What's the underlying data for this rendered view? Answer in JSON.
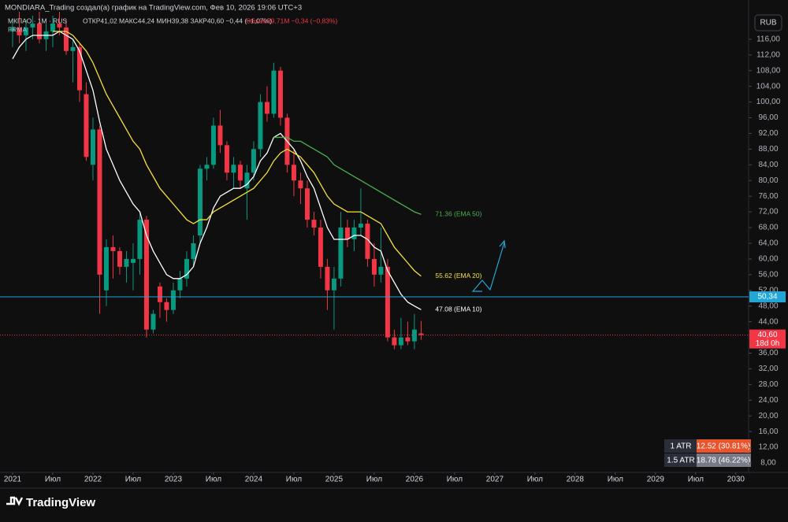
{
  "header": {
    "credit": "MONDIARA_Trading создал(а) график на TradingView.com, Фев 10, 2026 19:06 UTC+3",
    "symbol": "МКПАО · 1M · RUS",
    "ohlc": "ОТКР41,02 МАКС44,24 МИН39,38 ЗАКР40,60 −0,44 (−1,07%)",
    "volume": "Объём29,71M −0,34 (−0,83%)",
    "indicator": "FRMA",
    "currency": "RUB"
  },
  "atr_table": {
    "rows": [
      [
        "1 ATR",
        "12.52 (30.81%)"
      ],
      [
        "1.5 ATR",
        "18.78 (46.22%)"
      ]
    ]
  },
  "footer": {
    "logo": "TradingView"
  },
  "chart_data": {
    "type": "candlestick",
    "up_color": "#089981",
    "down_color": "#f23645",
    "xlim": [
      -1.88,
      109.9
    ],
    "ylim": [
      5.6,
      126.0
    ],
    "grid": false,
    "xticks": [
      {
        "value": 0,
        "label": "2021"
      },
      {
        "value": 6,
        "label": "Июл"
      },
      {
        "value": 12,
        "label": "2022"
      },
      {
        "value": 18,
        "label": "Июл"
      },
      {
        "value": 24,
        "label": "2023"
      },
      {
        "value": 30,
        "label": "Июл"
      },
      {
        "value": 36,
        "label": "2024"
      },
      {
        "value": 42,
        "label": "Июл"
      },
      {
        "value": 48,
        "label": "2025"
      },
      {
        "value": 54,
        "label": "Июл"
      },
      {
        "value": 60,
        "label": "2026"
      },
      {
        "value": 66,
        "label": "Июл"
      },
      {
        "value": 72,
        "label": "2027"
      },
      {
        "value": 78,
        "label": "Июл"
      },
      {
        "value": 84,
        "label": "2028"
      },
      {
        "value": 90,
        "label": "Июл"
      },
      {
        "value": 96,
        "label": "2029"
      },
      {
        "value": 102,
        "label": "Июл"
      },
      {
        "value": 108,
        "label": "2030"
      }
    ],
    "yticks": [
      {
        "value": 8,
        "label": "8,00"
      },
      {
        "value": 12,
        "label": "12,00"
      },
      {
        "value": 16,
        "label": "16,00"
      },
      {
        "value": 20,
        "label": "20,00"
      },
      {
        "value": 24,
        "label": "24,00"
      },
      {
        "value": 28,
        "label": "28,00"
      },
      {
        "value": 32,
        "label": "32,00"
      },
      {
        "value": 36,
        "label": "36,00"
      },
      {
        "value": 44,
        "label": "44,00"
      },
      {
        "value": 48,
        "label": "48,00"
      },
      {
        "value": 52,
        "label": "52,00"
      },
      {
        "value": 56,
        "label": "56,00"
      },
      {
        "value": 60,
        "label": "60,00"
      },
      {
        "value": 64,
        "label": "64,00"
      },
      {
        "value": 68,
        "label": "68,00"
      },
      {
        "value": 72,
        "label": "72,00"
      },
      {
        "value": 76,
        "label": "76,00"
      },
      {
        "value": 80,
        "label": "80,00"
      },
      {
        "value": 84,
        "label": "84,00"
      },
      {
        "value": 88,
        "label": "88,00"
      },
      {
        "value": 92,
        "label": "92,00"
      },
      {
        "value": 96,
        "label": "96,00"
      },
      {
        "value": 100,
        "label": "100,00"
      },
      {
        "value": 104,
        "label": "104,00"
      },
      {
        "value": 108,
        "label": "108,00"
      },
      {
        "value": 112,
        "label": "112,00"
      },
      {
        "value": 116,
        "label": "116,00"
      }
    ],
    "x": [
      0,
      1,
      2,
      3,
      4,
      5,
      6,
      7,
      8,
      9,
      10,
      11,
      12,
      13,
      14,
      15,
      16,
      17,
      18,
      19,
      20,
      21,
      22,
      23,
      24,
      25,
      26,
      27,
      28,
      29,
      30,
      31,
      32,
      33,
      34,
      35,
      36,
      37,
      38,
      39,
      40,
      41,
      42,
      43,
      44,
      45,
      46,
      47,
      48,
      49,
      50,
      51,
      52,
      53,
      54,
      55,
      56,
      57,
      58,
      59,
      60,
      61
    ],
    "ohlc": [
      [
        118,
        121,
        114,
        119
      ],
      [
        119,
        123,
        115,
        117
      ],
      [
        117,
        121,
        113,
        119
      ],
      [
        119,
        122,
        116,
        120
      ],
      [
        120,
        123,
        115,
        116
      ],
      [
        116,
        120,
        113,
        118
      ],
      [
        118,
        122,
        114,
        120
      ],
      [
        120,
        123,
        117,
        119
      ],
      [
        119,
        121,
        112,
        113
      ],
      [
        113,
        116,
        105,
        114
      ],
      [
        114,
        115,
        100,
        103
      ],
      [
        102,
        105,
        85,
        86
      ],
      [
        84,
        96,
        80,
        93
      ],
      [
        93,
        94,
        46,
        56
      ],
      [
        52,
        65,
        48,
        63
      ],
      [
        63,
        66,
        55,
        62
      ],
      [
        62,
        63,
        56,
        58
      ],
      [
        58,
        62,
        54,
        60
      ],
      [
        59,
        64,
        52,
        60
      ],
      [
        60,
        72,
        56,
        70
      ],
      [
        70,
        71,
        40,
        42
      ],
      [
        42,
        47,
        41,
        46
      ],
      [
        53,
        54,
        45,
        49
      ],
      [
        49,
        50,
        44,
        47
      ],
      [
        47,
        54,
        46,
        52
      ],
      [
        52,
        57,
        50,
        55
      ],
      [
        55,
        62,
        53,
        60
      ],
      [
        60,
        66,
        58,
        64
      ],
      [
        66,
        84,
        64,
        83
      ],
      [
        83,
        86,
        80,
        84
      ],
      [
        84,
        96,
        83,
        94
      ],
      [
        94,
        98,
        87,
        89
      ],
      [
        89,
        90,
        80,
        82
      ],
      [
        82,
        86,
        78,
        84
      ],
      [
        84,
        85,
        78,
        80
      ],
      [
        78,
        84,
        70,
        82
      ],
      [
        82,
        90,
        80,
        88
      ],
      [
        88,
        102,
        86,
        100
      ],
      [
        100,
        104,
        95,
        97
      ],
      [
        97,
        110,
        96,
        108
      ],
      [
        108,
        109,
        94,
        96
      ],
      [
        96,
        97,
        82,
        84
      ],
      [
        84,
        88,
        76,
        80
      ],
      [
        80,
        82,
        74,
        78
      ],
      [
        78,
        80,
        68,
        70
      ],
      [
        70,
        72,
        66,
        68
      ],
      [
        68,
        70,
        55,
        58
      ],
      [
        58,
        60,
        47,
        52
      ],
      [
        52,
        58,
        42,
        55
      ],
      [
        55,
        72,
        53,
        68
      ],
      [
        68,
        70,
        63,
        65
      ],
      [
        65,
        70,
        62,
        68
      ],
      [
        68,
        78,
        66,
        69
      ],
      [
        69,
        70,
        58,
        60
      ],
      [
        60,
        64,
        53,
        56
      ],
      [
        56,
        68,
        54,
        58
      ],
      [
        58,
        60,
        39,
        40
      ],
      [
        40,
        42,
        37,
        38
      ],
      [
        38,
        45,
        37,
        40
      ],
      [
        40,
        44,
        38,
        39
      ],
      [
        39,
        46,
        37,
        42
      ],
      [
        41.02,
        44.24,
        39.38,
        40.6
      ]
    ],
    "last_price_label": "40,60",
    "countdown": "18d 0h",
    "hline": {
      "value": 50.34,
      "label": "50,34",
      "color": "#22a6d6"
    },
    "series": [
      {
        "name": "EMA 10",
        "label": "47.08 (EMA 10)",
        "color": "#ffffff",
        "values": [
          111,
          114,
          116,
          117,
          117,
          117,
          117,
          118,
          117,
          116,
          113,
          108,
          103,
          95,
          88,
          84,
          80,
          77,
          74,
          72,
          66,
          62,
          59,
          56,
          55,
          55,
          56,
          58,
          64,
          68,
          73,
          76,
          77,
          78,
          78,
          79,
          81,
          85,
          87,
          91,
          92,
          90,
          88,
          85,
          81,
          78,
          73,
          68,
          65,
          65,
          65,
          66,
          66,
          65,
          63,
          62,
          57,
          54,
          51,
          49,
          48,
          47.08
        ]
      },
      {
        "name": "EMA 20",
        "label": "55.62 (EMA 20)",
        "color": "#f5e13a",
        "values": [
          null,
          null,
          null,
          null,
          null,
          null,
          118,
          118,
          118,
          117,
          115,
          113,
          110,
          106,
          102,
          99,
          96,
          93,
          90,
          88,
          84,
          81,
          78,
          76,
          74,
          72,
          70,
          69,
          70,
          70,
          72,
          73,
          74,
          75,
          76,
          77,
          78,
          80,
          82,
          85,
          87,
          88,
          87,
          86,
          84,
          82,
          79,
          76,
          74,
          73,
          72,
          72,
          72,
          71,
          70,
          69,
          66,
          63,
          61,
          59,
          57,
          55.62
        ]
      },
      {
        "name": "EMA 50",
        "label": "71.36 (EMA 50)",
        "color": "#4caf50",
        "values": [
          null,
          null,
          null,
          null,
          null,
          null,
          null,
          null,
          null,
          null,
          null,
          null,
          null,
          null,
          null,
          null,
          null,
          null,
          null,
          null,
          null,
          null,
          null,
          null,
          null,
          null,
          null,
          null,
          null,
          null,
          null,
          null,
          null,
          null,
          null,
          null,
          null,
          null,
          null,
          91,
          91,
          91,
          90,
          90,
          89,
          88,
          87,
          86,
          84,
          83,
          82,
          81,
          80,
          79,
          78,
          77,
          76,
          75,
          74,
          73,
          72,
          71.36
        ]
      }
    ]
  }
}
